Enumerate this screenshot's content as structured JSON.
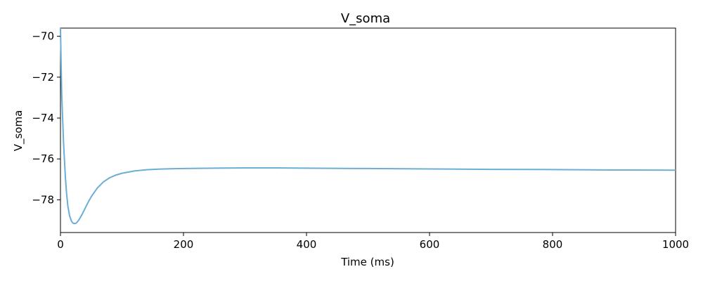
{
  "chart_data": {
    "type": "line",
    "title": "V_soma",
    "xlabel": "Time (ms)",
    "ylabel": "V_soma",
    "xlim": [
      0,
      1000
    ],
    "ylim": [
      -79.6,
      -69.6
    ],
    "xticks": [
      0,
      200,
      400,
      600,
      800,
      1000
    ],
    "yticks": [
      -78,
      -76,
      -74,
      -72,
      -70
    ],
    "xtick_labels": [
      "0",
      "200",
      "400",
      "600",
      "800",
      "1000"
    ],
    "ytick_labels": [
      "−78",
      "−76",
      "−74",
      "−72",
      "−70"
    ],
    "grid": false,
    "series": [
      {
        "color": "#6baed6",
        "x": [
          0,
          2,
          5,
          8,
          10,
          12,
          15,
          18,
          20,
          22,
          25,
          28,
          30,
          35,
          40,
          45,
          50,
          60,
          70,
          80,
          90,
          100,
          120,
          140,
          160,
          180,
          200,
          250,
          300,
          350,
          400,
          500,
          600,
          700,
          800,
          900,
          1000
        ],
        "y": [
          -69.6,
          -72.8,
          -75.2,
          -76.9,
          -77.7,
          -78.3,
          -78.8,
          -79.05,
          -79.13,
          -79.16,
          -79.15,
          -79.06,
          -78.98,
          -78.72,
          -78.42,
          -78.12,
          -77.85,
          -77.42,
          -77.12,
          -76.92,
          -76.79,
          -76.7,
          -76.59,
          -76.53,
          -76.5,
          -76.48,
          -76.47,
          -76.45,
          -76.44,
          -76.44,
          -76.45,
          -76.47,
          -76.49,
          -76.51,
          -76.52,
          -76.54,
          -76.55
        ]
      }
    ]
  }
}
